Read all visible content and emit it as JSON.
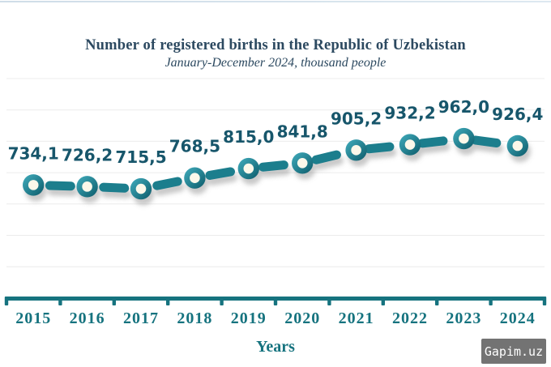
{
  "header": {
    "title": "Number of registered births in the Republic of Uzbekistan",
    "subtitle": "January-December 2024, thousand people"
  },
  "chart_data": {
    "type": "line",
    "title": "Number of registered births in the Republic of Uzbekistan",
    "subtitle": "January-December 2024, thousand people",
    "categories": [
      "2015",
      "2016",
      "2017",
      "2018",
      "2019",
      "2020",
      "2021",
      "2022",
      "2023",
      "2024"
    ],
    "values": [
      734.1,
      726.2,
      715.5,
      768.5,
      815.0,
      841.8,
      905.2,
      932.2,
      962.0,
      926.4
    ],
    "point_labels": [
      "734,1",
      "726,2",
      "715,5",
      "768,5",
      "815,0",
      "841,8",
      "905,2",
      "932,2",
      "962,0",
      "926,4"
    ],
    "xlabel": "Years",
    "ylabel": "",
    "unit": "thousand people",
    "grid": true,
    "legend": false,
    "line_style": "dashed",
    "marker_style": "donut",
    "colors": {
      "line": "#1a7e8d",
      "marker_ring_light": "#41adbd",
      "marker_ring_dark": "#0d5b6a",
      "marker_fill": "#fcf8ea",
      "point_label": "#17566b",
      "axis": "#16737f",
      "grid": "#ececec",
      "title": "#2c4960"
    }
  },
  "watermark": {
    "text": "Gapim.uz"
  }
}
